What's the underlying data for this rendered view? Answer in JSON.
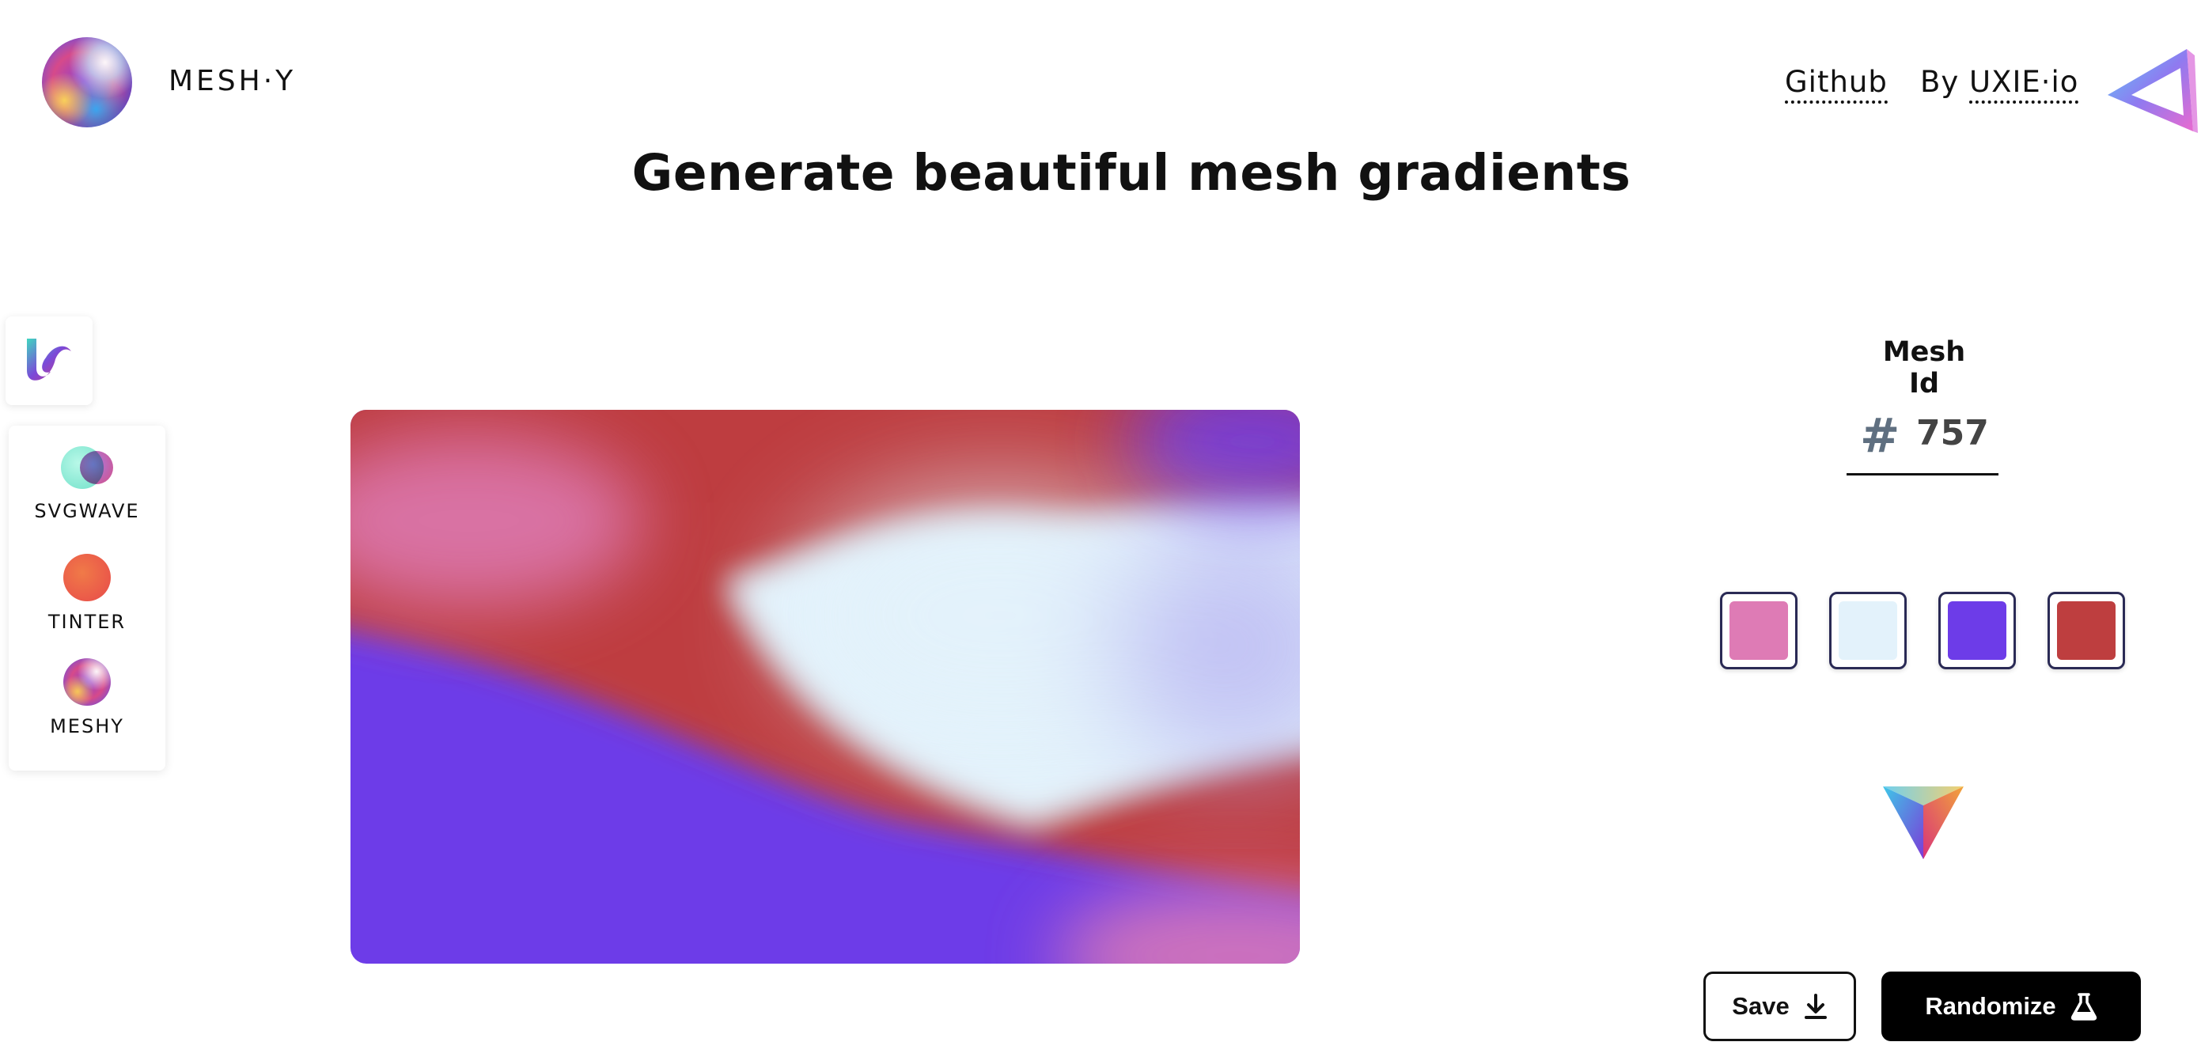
{
  "header": {
    "brand": "MESH·Y",
    "github_link": "Github",
    "by_prefix": "By",
    "by_link": "UXIE·io",
    "headline": "Generate beautiful mesh gradients"
  },
  "sidebar": {
    "items": [
      {
        "label": "SVGWAVE",
        "icon": "svgwave-icon"
      },
      {
        "label": "TINTER",
        "icon": "tinter-icon"
      },
      {
        "label": "MESHY",
        "icon": "meshy-icon"
      }
    ]
  },
  "mesh": {
    "id_label": "Mesh Id",
    "hash_symbol": "#",
    "id_value": "757",
    "palette": [
      "#DE7BB5",
      "#E3F2FB",
      "#6D3CE8",
      "#BE3E3F"
    ]
  },
  "actions": {
    "save_label": "Save",
    "randomize_label": "Randomize"
  },
  "colors": {
    "text": "#111111",
    "swatch_border": "#2A2A55",
    "button_dark": "#000000"
  }
}
